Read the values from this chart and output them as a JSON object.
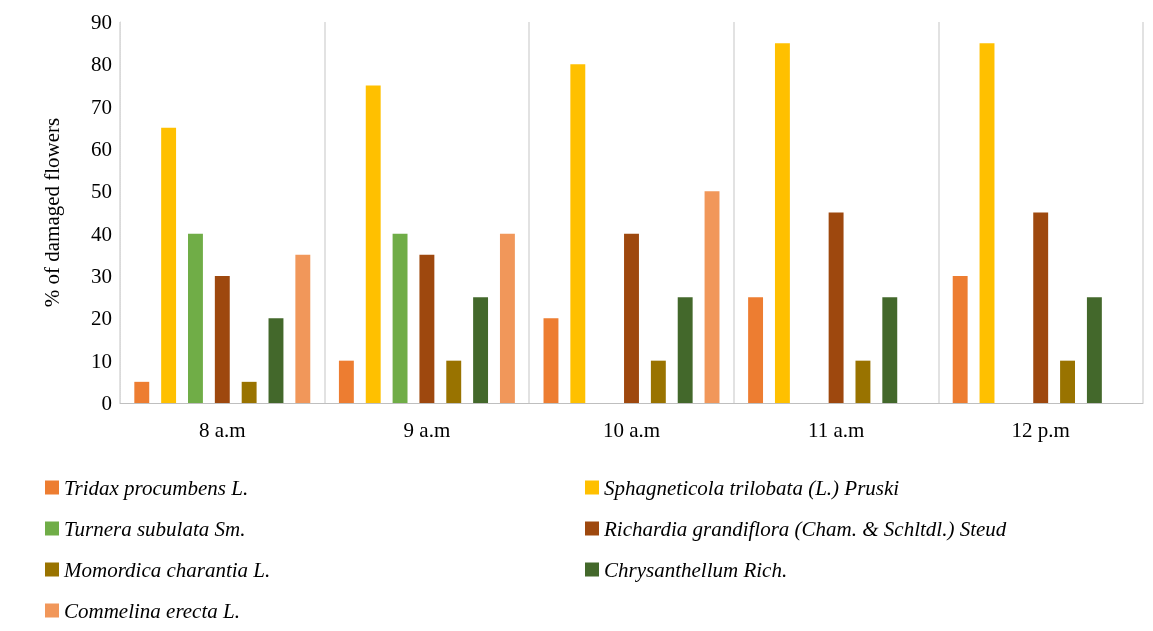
{
  "chart_data": {
    "type": "bar",
    "ylabel": "% of damaged flowers",
    "categories": [
      "8 a.m",
      "9 a.m",
      "10 a.m",
      "11 a.m",
      "12 p.m"
    ],
    "series": [
      {
        "name": "Tridax procumbens L.",
        "color": "#ed7d31",
        "values": [
          5,
          10,
          20,
          25,
          30
        ]
      },
      {
        "name": "Sphagneticola trilobata (L.) Pruski",
        "color": "#ffc000",
        "values": [
          65,
          75,
          80,
          85,
          85
        ]
      },
      {
        "name": "Turnera subulata Sm.",
        "color": "#70ad47",
        "values": [
          40,
          40,
          null,
          null,
          null
        ]
      },
      {
        "name": "Richardia grandiflora (Cham. & Schltdl.) Steud",
        "color": "#9e480e",
        "values": [
          30,
          35,
          40,
          45,
          45
        ]
      },
      {
        "name": "Momordica charantia L.",
        "color": "#997300",
        "values": [
          5,
          10,
          10,
          10,
          10
        ]
      },
      {
        "name": "Chrysanthellum Rich.",
        "color": "#43682b",
        "values": [
          20,
          25,
          25,
          25,
          25
        ]
      },
      {
        "name": "Commelina erecta L.",
        "color": "#f1975a",
        "values": [
          35,
          40,
          50,
          null,
          null
        ]
      }
    ],
    "ylim": [
      0,
      90
    ],
    "yticks": [
      0,
      10,
      20,
      30,
      40,
      50,
      60,
      70,
      80,
      90
    ],
    "grid": "x",
    "legend": "bottom"
  }
}
